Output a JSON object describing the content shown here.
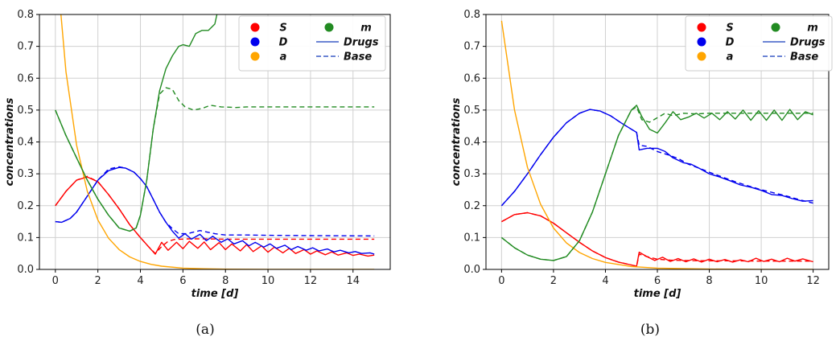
{
  "figure": {
    "colors": {
      "S": "#ff0000",
      "D": "#0000ee",
      "a": "#ffa500",
      "m": "#228b22",
      "drugs_line": "#3b5cc6",
      "base_line": "#3b5cc6"
    },
    "legend": {
      "markers": [
        {
          "key": "S",
          "label": "S"
        },
        {
          "key": "D",
          "label": "D"
        },
        {
          "key": "a",
          "label": "a"
        },
        {
          "key": "m",
          "label": "m"
        }
      ],
      "lines": [
        {
          "label": "Drugs",
          "style": "solid"
        },
        {
          "label": "Base",
          "style": "dashed"
        }
      ],
      "placement": "top-right"
    }
  },
  "chart_data": [
    {
      "type": "line",
      "caption": "(a)",
      "xlabel": "time [d]",
      "ylabel": "concentrations",
      "xlim": [
        -0.75,
        15.75
      ],
      "ylim": [
        0,
        0.8
      ],
      "xticks": [
        0,
        2,
        4,
        6,
        8,
        10,
        12,
        14
      ],
      "yticks": [
        0.0,
        0.1,
        0.2,
        0.3,
        0.4,
        0.5,
        0.6,
        0.7,
        0.8
      ],
      "grid": true,
      "series": [
        {
          "name": "S",
          "style": "solid",
          "x": [
            0,
            0.5,
            1,
            1.5,
            2,
            2.5,
            3,
            3.5,
            4,
            4.4,
            4.7,
            5.0,
            5.3,
            5.7,
            6.0,
            6.3,
            6.7,
            7.0,
            7.3,
            7.7,
            8.0,
            8.3,
            8.7,
            9.0,
            9.3,
            9.7,
            10.0,
            10.3,
            10.7,
            11,
            11.3,
            11.7,
            12,
            12.3,
            12.7,
            13,
            13.3,
            13.7,
            14,
            14.3,
            14.7,
            15
          ],
          "y": [
            0.2,
            0.245,
            0.28,
            0.29,
            0.275,
            0.235,
            0.19,
            0.14,
            0.1,
            0.07,
            0.048,
            0.085,
            0.06,
            0.085,
            0.065,
            0.088,
            0.066,
            0.086,
            0.062,
            0.084,
            0.062,
            0.08,
            0.058,
            0.078,
            0.056,
            0.074,
            0.054,
            0.07,
            0.052,
            0.066,
            0.05,
            0.062,
            0.048,
            0.058,
            0.046,
            0.055,
            0.045,
            0.052,
            0.044,
            0.048,
            0.042,
            0.045
          ]
        },
        {
          "name": "D",
          "style": "solid",
          "x": [
            0,
            0.3,
            0.7,
            1,
            1.5,
            2,
            2.5,
            3,
            3.3,
            3.7,
            4,
            4.3,
            4.6,
            4.9,
            5.2,
            5.5,
            5.8,
            6.1,
            6.4,
            6.8,
            7.1,
            7.4,
            7.8,
            8.1,
            8.4,
            8.8,
            9.1,
            9.4,
            9.8,
            10.1,
            10.4,
            10.8,
            11.1,
            11.4,
            11.8,
            12.1,
            12.4,
            12.8,
            13.1,
            13.4,
            13.8,
            14.1,
            14.4,
            14.8,
            15
          ],
          "y": [
            0.15,
            0.148,
            0.16,
            0.18,
            0.23,
            0.28,
            0.31,
            0.32,
            0.318,
            0.305,
            0.285,
            0.26,
            0.22,
            0.18,
            0.148,
            0.12,
            0.098,
            0.112,
            0.095,
            0.11,
            0.09,
            0.104,
            0.085,
            0.096,
            0.08,
            0.09,
            0.074,
            0.085,
            0.07,
            0.08,
            0.066,
            0.076,
            0.062,
            0.072,
            0.06,
            0.068,
            0.058,
            0.064,
            0.055,
            0.06,
            0.052,
            0.056,
            0.05,
            0.052,
            0.048
          ]
        },
        {
          "name": "a",
          "style": "solid",
          "x": [
            0,
            0.5,
            1,
            1.5,
            2,
            2.5,
            3,
            3.5,
            4,
            4.5,
            5,
            6,
            7,
            8,
            10,
            12,
            15
          ],
          "y": [
            1.0,
            0.62,
            0.39,
            0.245,
            0.155,
            0.098,
            0.062,
            0.039,
            0.025,
            0.016,
            0.01,
            0.004,
            0.002,
            0.0008,
            0.0002,
            5e-05,
            0.0
          ]
        },
        {
          "name": "m",
          "style": "solid",
          "x": [
            0,
            0.5,
            1,
            1.5,
            2,
            2.5,
            3,
            3.5,
            3.8,
            4,
            4.3,
            4.6,
            4.9,
            5.2,
            5.5,
            5.8,
            6,
            6.3,
            6.6,
            6.9,
            7.2,
            7.5,
            7.6
          ],
          "y": [
            0.5,
            0.42,
            0.35,
            0.28,
            0.22,
            0.17,
            0.13,
            0.12,
            0.13,
            0.17,
            0.28,
            0.44,
            0.56,
            0.63,
            0.67,
            0.7,
            0.705,
            0.7,
            0.74,
            0.75,
            0.75,
            0.77,
            0.8
          ]
        },
        {
          "name": "S",
          "style": "dashed",
          "x": [
            0,
            0.5,
            1,
            1.5,
            2,
            2.5,
            3,
            3.5,
            4,
            4.4,
            4.7,
            5.0,
            5.3,
            5.6,
            5.9,
            6.3,
            7,
            8,
            9,
            10,
            12,
            15
          ],
          "y": [
            0.2,
            0.245,
            0.28,
            0.292,
            0.275,
            0.235,
            0.19,
            0.14,
            0.1,
            0.07,
            0.05,
            0.072,
            0.088,
            0.094,
            0.095,
            0.096,
            0.096,
            0.095,
            0.095,
            0.095,
            0.095,
            0.095
          ]
        },
        {
          "name": "D",
          "style": "dashed",
          "x": [
            0,
            0.3,
            0.7,
            1,
            1.5,
            2,
            2.5,
            3,
            3.3,
            3.7,
            4,
            4.3,
            4.6,
            4.9,
            5.2,
            5.5,
            5.8,
            6.2,
            6.8,
            7.5,
            8,
            9,
            10,
            12,
            15
          ],
          "y": [
            0.15,
            0.148,
            0.16,
            0.18,
            0.23,
            0.28,
            0.315,
            0.322,
            0.318,
            0.305,
            0.285,
            0.26,
            0.22,
            0.18,
            0.148,
            0.128,
            0.112,
            0.112,
            0.122,
            0.112,
            0.108,
            0.108,
            0.107,
            0.106,
            0.105
          ]
        },
        {
          "name": "m",
          "style": "dashed",
          "x": [
            0,
            0.5,
            1,
            1.5,
            2,
            2.5,
            3,
            3.5,
            3.8,
            4,
            4.3,
            4.6,
            4.9,
            5.2,
            5.5,
            5.8,
            6.1,
            6.5,
            6.9,
            7.3,
            7.8,
            8.5,
            9,
            10,
            12,
            15
          ],
          "y": [
            0.5,
            0.42,
            0.35,
            0.28,
            0.22,
            0.17,
            0.13,
            0.12,
            0.13,
            0.17,
            0.28,
            0.44,
            0.55,
            0.57,
            0.565,
            0.53,
            0.51,
            0.5,
            0.505,
            0.515,
            0.51,
            0.508,
            0.51,
            0.51,
            0.51,
            0.51
          ]
        }
      ]
    },
    {
      "type": "line",
      "caption": "(b)",
      "xlabel": "time [d]",
      "ylabel": "concentrations",
      "xlim": [
        -0.6,
        12.6
      ],
      "ylim": [
        0,
        0.8
      ],
      "xticks": [
        0,
        2,
        4,
        6,
        8,
        10,
        12
      ],
      "yticks": [
        0.0,
        0.1,
        0.2,
        0.3,
        0.4,
        0.5,
        0.6,
        0.7,
        0.8
      ],
      "grid": true,
      "series": [
        {
          "name": "S",
          "style": "solid",
          "x": [
            0,
            0.5,
            1,
            1.5,
            2,
            2.5,
            3,
            3.5,
            4,
            4.5,
            5,
            5.2,
            5.3,
            5.6,
            5.9,
            6.2,
            6.5,
            6.8,
            7.1,
            7.4,
            7.7,
            8,
            8.3,
            8.6,
            8.9,
            9.2,
            9.5,
            9.8,
            10.1,
            10.4,
            10.7,
            11,
            11.3,
            11.6,
            12
          ],
          "y": [
            0.15,
            0.172,
            0.178,
            0.168,
            0.145,
            0.115,
            0.085,
            0.058,
            0.037,
            0.023,
            0.014,
            0.01,
            0.054,
            0.04,
            0.028,
            0.038,
            0.025,
            0.034,
            0.024,
            0.033,
            0.023,
            0.032,
            0.024,
            0.031,
            0.023,
            0.03,
            0.024,
            0.035,
            0.025,
            0.032,
            0.024,
            0.035,
            0.026,
            0.033,
            0.024
          ]
        },
        {
          "name": "D",
          "style": "solid",
          "x": [
            0,
            0.5,
            1,
            1.5,
            2,
            2.5,
            3,
            3.4,
            3.8,
            4.2,
            4.6,
            5,
            5.2,
            5.3,
            5.6,
            6,
            6.3,
            6.6,
            7,
            7.3,
            7.6,
            8,
            8.4,
            8.8,
            9.2,
            9.6,
            10,
            10.4,
            10.8,
            11.2,
            11.6,
            12
          ],
          "y": [
            0.2,
            0.245,
            0.3,
            0.36,
            0.415,
            0.46,
            0.49,
            0.502,
            0.497,
            0.482,
            0.46,
            0.44,
            0.43,
            0.375,
            0.38,
            0.38,
            0.37,
            0.35,
            0.335,
            0.33,
            0.318,
            0.3,
            0.29,
            0.278,
            0.265,
            0.258,
            0.248,
            0.235,
            0.232,
            0.222,
            0.214,
            0.216
          ]
        },
        {
          "name": "a",
          "style": "solid",
          "x": [
            0,
            0.5,
            1,
            1.5,
            2,
            2.5,
            3,
            3.5,
            4,
            5,
            6,
            8,
            10,
            12
          ],
          "y": [
            0.78,
            0.5,
            0.32,
            0.205,
            0.13,
            0.083,
            0.053,
            0.034,
            0.022,
            0.009,
            0.004,
            0.001,
            0.0002,
            0.0
          ]
        },
        {
          "name": "m",
          "style": "solid",
          "x": [
            0,
            0.5,
            1,
            1.5,
            2,
            2.5,
            3,
            3.5,
            4,
            4.5,
            5,
            5.2,
            5.4,
            5.7,
            6,
            6.3,
            6.6,
            6.9,
            7.2,
            7.5,
            7.8,
            8.1,
            8.4,
            8.7,
            9,
            9.3,
            9.6,
            9.9,
            10.2,
            10.5,
            10.8,
            11.1,
            11.4,
            11.7,
            12
          ],
          "y": [
            0.1,
            0.068,
            0.045,
            0.032,
            0.028,
            0.04,
            0.09,
            0.18,
            0.3,
            0.42,
            0.5,
            0.515,
            0.48,
            0.44,
            0.428,
            0.46,
            0.495,
            0.47,
            0.478,
            0.49,
            0.475,
            0.49,
            0.47,
            0.495,
            0.472,
            0.5,
            0.468,
            0.498,
            0.468,
            0.5,
            0.468,
            0.502,
            0.47,
            0.495,
            0.485
          ]
        },
        {
          "name": "S",
          "style": "dashed",
          "x": [
            0,
            0.5,
            1,
            1.5,
            2,
            2.5,
            3,
            3.5,
            4,
            4.5,
            5,
            5.2,
            5.3,
            5.6,
            6,
            6.5,
            7,
            8,
            9,
            10,
            11,
            12
          ],
          "y": [
            0.15,
            0.172,
            0.178,
            0.168,
            0.145,
            0.115,
            0.085,
            0.058,
            0.037,
            0.023,
            0.014,
            0.01,
            0.048,
            0.04,
            0.032,
            0.029,
            0.028,
            0.027,
            0.027,
            0.026,
            0.026,
            0.026
          ]
        },
        {
          "name": "D",
          "style": "dashed",
          "x": [
            0,
            0.5,
            1,
            1.5,
            2,
            2.5,
            3,
            3.4,
            3.8,
            4.2,
            4.6,
            5,
            5.2,
            5.3,
            5.6,
            6,
            6.4,
            6.8,
            7.2,
            7.6,
            8,
            8.5,
            9,
            9.5,
            10,
            10.5,
            11,
            11.5,
            12
          ],
          "y": [
            0.2,
            0.245,
            0.3,
            0.36,
            0.415,
            0.46,
            0.49,
            0.502,
            0.497,
            0.482,
            0.46,
            0.44,
            0.43,
            0.39,
            0.386,
            0.37,
            0.36,
            0.348,
            0.33,
            0.318,
            0.305,
            0.29,
            0.275,
            0.262,
            0.25,
            0.24,
            0.23,
            0.218,
            0.208
          ]
        },
        {
          "name": "m",
          "style": "dashed",
          "x": [
            0,
            0.5,
            1,
            1.5,
            2,
            2.5,
            3,
            3.5,
            4,
            4.5,
            5,
            5.2,
            5.4,
            5.7,
            6,
            6.3,
            6.6,
            7,
            7.5,
            8,
            9,
            10,
            11,
            12
          ],
          "y": [
            0.1,
            0.068,
            0.045,
            0.032,
            0.028,
            0.04,
            0.09,
            0.18,
            0.3,
            0.42,
            0.5,
            0.51,
            0.47,
            0.462,
            0.476,
            0.49,
            0.482,
            0.49,
            0.488,
            0.49,
            0.49,
            0.49,
            0.49,
            0.49
          ]
        }
      ]
    }
  ]
}
